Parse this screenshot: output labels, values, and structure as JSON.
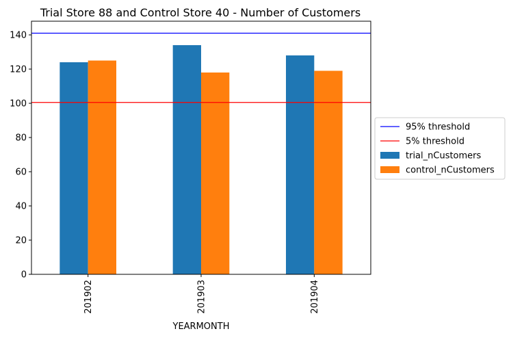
{
  "chart_data": {
    "type": "bar",
    "title": "Trial Store 88 and Control Store 40 - Number of Customers",
    "xlabel": "YEARMONTH",
    "ylabel": "",
    "categories": [
      "201902",
      "201903",
      "201904"
    ],
    "series": [
      {
        "name": "trial_nCustomers",
        "values": [
          124,
          134,
          128
        ],
        "color": "#1f77b4"
      },
      {
        "name": "control_nCustomers",
        "values": [
          125,
          118,
          119
        ],
        "color": "#ff7f0e"
      }
    ],
    "hlines": [
      {
        "name": "95% threshold",
        "value": 141,
        "color": "#0000ff"
      },
      {
        "name": "5% threshold",
        "value": 100.5,
        "color": "#ff0000"
      }
    ],
    "ylim": [
      0,
      148
    ],
    "yticks": [
      0,
      20,
      40,
      60,
      80,
      100,
      120,
      140
    ],
    "legend_position": "right",
    "grid": false
  }
}
